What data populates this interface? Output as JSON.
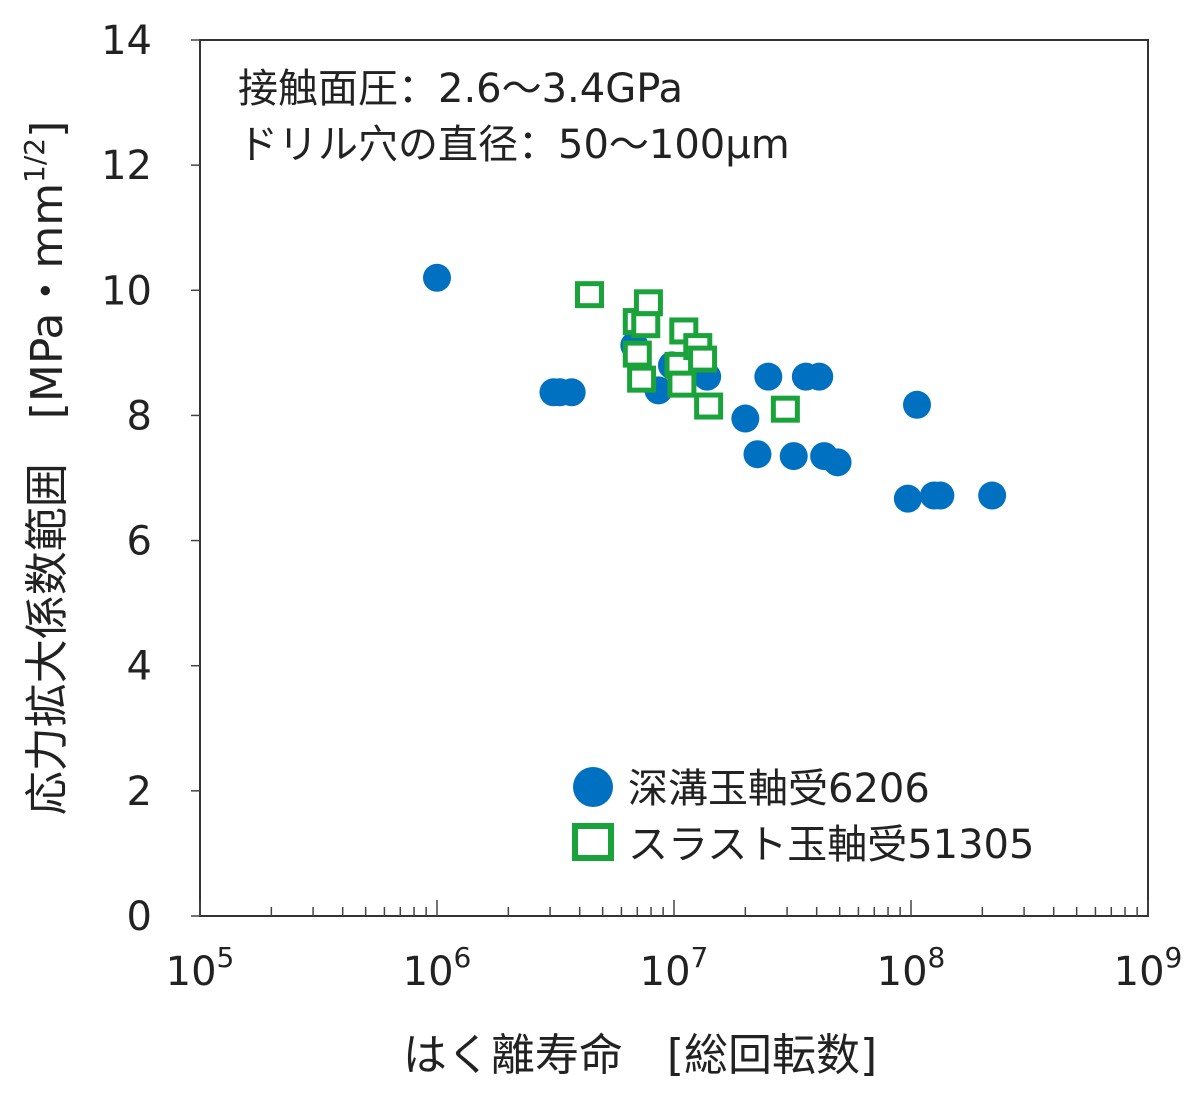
{
  "chart_data": {
    "type": "scatter",
    "annotations": [
      "接触面圧：2.6～3.4GPa",
      "ドリル穴の直径：50～100μm"
    ],
    "xlabel": "はく離寿命　[総回転数]",
    "ylabel": "応力拡大係数範囲　[MPa・mm",
    "ylabel_sup": "1/2",
    "ylabel_close": "]",
    "x_scale": "log",
    "xlim": [
      100000,
      1000000000
    ],
    "ylim": [
      0,
      14
    ],
    "x_ticks": [
      {
        "value": 100000,
        "base": "10",
        "exp": "5"
      },
      {
        "value": 1000000,
        "base": "10",
        "exp": "6"
      },
      {
        "value": 10000000,
        "base": "10",
        "exp": "7"
      },
      {
        "value": 100000000,
        "base": "10",
        "exp": "8"
      },
      {
        "value": 1000000000,
        "base": "10",
        "exp": "9"
      }
    ],
    "y_ticks": [
      {
        "value": 0,
        "label": "0"
      },
      {
        "value": 2,
        "label": "2"
      },
      {
        "value": 4,
        "label": "4"
      },
      {
        "value": 6,
        "label": "6"
      },
      {
        "value": 8,
        "label": "8"
      },
      {
        "value": 10,
        "label": "10"
      },
      {
        "value": 12,
        "label": "12"
      },
      {
        "value": 14,
        "label": "14"
      }
    ],
    "grid": false,
    "legend_position": "bottom-right",
    "series": [
      {
        "name": "深溝玉軸受6206",
        "marker": "filled-circle",
        "color": "#0070c0",
        "points": [
          {
            "x": 1000000,
            "y": 10.2
          },
          {
            "x": 3100000,
            "y": 8.37
          },
          {
            "x": 3300000,
            "y": 8.37
          },
          {
            "x": 3700000,
            "y": 8.37
          },
          {
            "x": 6800000,
            "y": 9.12
          },
          {
            "x": 8600000,
            "y": 8.4
          },
          {
            "x": 9800000,
            "y": 8.8
          },
          {
            "x": 13800000,
            "y": 8.62
          },
          {
            "x": 20000000,
            "y": 7.95
          },
          {
            "x": 22500000,
            "y": 7.38
          },
          {
            "x": 25000000,
            "y": 8.62
          },
          {
            "x": 32000000,
            "y": 7.35
          },
          {
            "x": 36000000,
            "y": 8.62
          },
          {
            "x": 41000000,
            "y": 8.62
          },
          {
            "x": 43000000,
            "y": 7.35
          },
          {
            "x": 49000000,
            "y": 7.25
          },
          {
            "x": 97000000,
            "y": 6.67
          },
          {
            "x": 106000000,
            "y": 8.17
          },
          {
            "x": 125000000,
            "y": 6.72
          },
          {
            "x": 133000000,
            "y": 6.72
          },
          {
            "x": 220000000,
            "y": 6.72
          }
        ]
      },
      {
        "name": "スラスト玉軸受51305",
        "marker": "open-square",
        "color": "#1aa33a",
        "points": [
          {
            "x": 4400000,
            "y": 9.93
          },
          {
            "x": 7000000,
            "y": 9.5
          },
          {
            "x": 7000000,
            "y": 8.98
          },
          {
            "x": 7300000,
            "y": 8.58
          },
          {
            "x": 7800000,
            "y": 9.8
          },
          {
            "x": 7600000,
            "y": 9.45
          },
          {
            "x": 10500000,
            "y": 8.8
          },
          {
            "x": 10800000,
            "y": 8.5
          },
          {
            "x": 11000000,
            "y": 9.35
          },
          {
            "x": 12600000,
            "y": 9.1
          },
          {
            "x": 13200000,
            "y": 8.9
          },
          {
            "x": 14000000,
            "y": 8.15
          },
          {
            "x": 29500000,
            "y": 8.1
          }
        ]
      }
    ]
  }
}
